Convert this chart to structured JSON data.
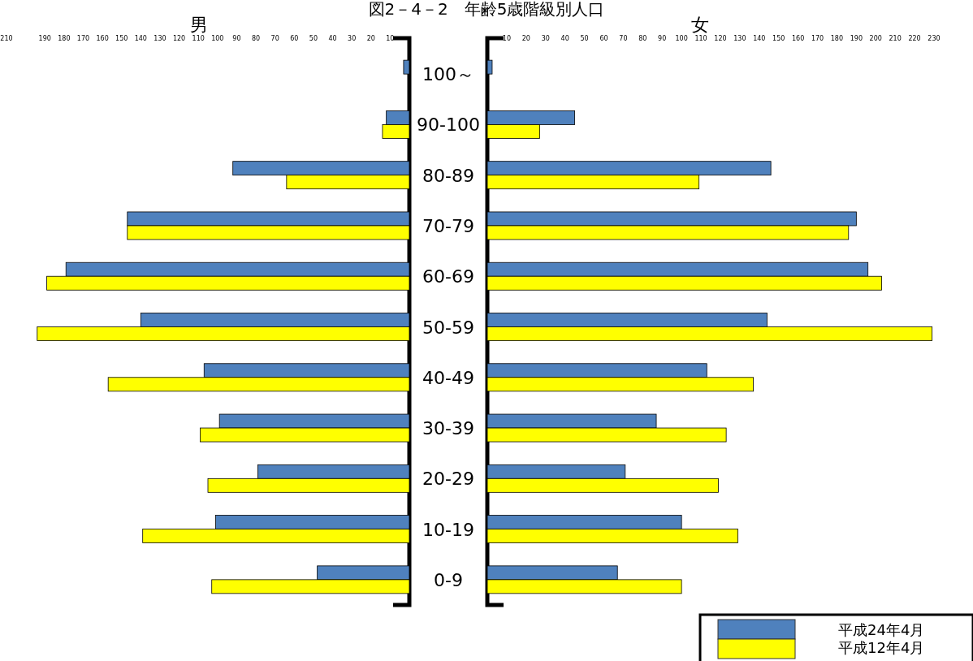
{
  "chart_data": [
    {
      "type": "bar",
      "orientation": "horizontal",
      "title": "図2－4－2　年齢5歳階級別人口",
      "subtitle": "男",
      "categories": [
        null,
        null,
        null,
        null,
        null,
        null,
        null,
        null,
        null,
        null,
        null
      ],
      "xlim": [
        210,
        0
      ],
      "xticks": [
        210,
        190,
        180,
        170,
        160,
        150,
        140,
        130,
        120,
        110,
        100,
        90,
        80,
        70,
        60,
        50,
        40,
        30,
        20,
        10
      ],
      "legend": false,
      "series": [
        {
          "color": "#4f81bd",
          "values": [
            3,
            12,
            92,
            147,
            179,
            140,
            107,
            99,
            79,
            101,
            48
          ]
        },
        {
          "color": "#ffff00",
          "values": [
            null,
            14,
            64,
            147,
            189,
            194,
            157,
            109,
            105,
            139,
            103
          ]
        }
      ]
    },
    {
      "type": "bar",
      "orientation": "horizontal",
      "subtitle": "女",
      "categories": [
        "100～",
        "90-100",
        "80-89",
        "70-79",
        "60-69",
        "50-59",
        "40-49",
        "30-39",
        "20-29",
        "10-19",
        "0-9"
      ],
      "xlim": [
        0,
        230
      ],
      "xticks": [
        10,
        20,
        30,
        40,
        50,
        60,
        70,
        80,
        90,
        100,
        110,
        120,
        130,
        140,
        150,
        160,
        170,
        180,
        190,
        200,
        210,
        220,
        230
      ],
      "legend": "bottom right",
      "series": [
        {
          "name": "平成24年4月",
          "color": "#4f81bd",
          "values": [
            2.5,
            45,
            146,
            190,
            196,
            144,
            113,
            87,
            71,
            100,
            67
          ]
        },
        {
          "name": "平成12年4月",
          "color": "#ffff00",
          "values": [
            null,
            27,
            109,
            186,
            203,
            229,
            137,
            123,
            119,
            129,
            100
          ]
        }
      ]
    }
  ]
}
